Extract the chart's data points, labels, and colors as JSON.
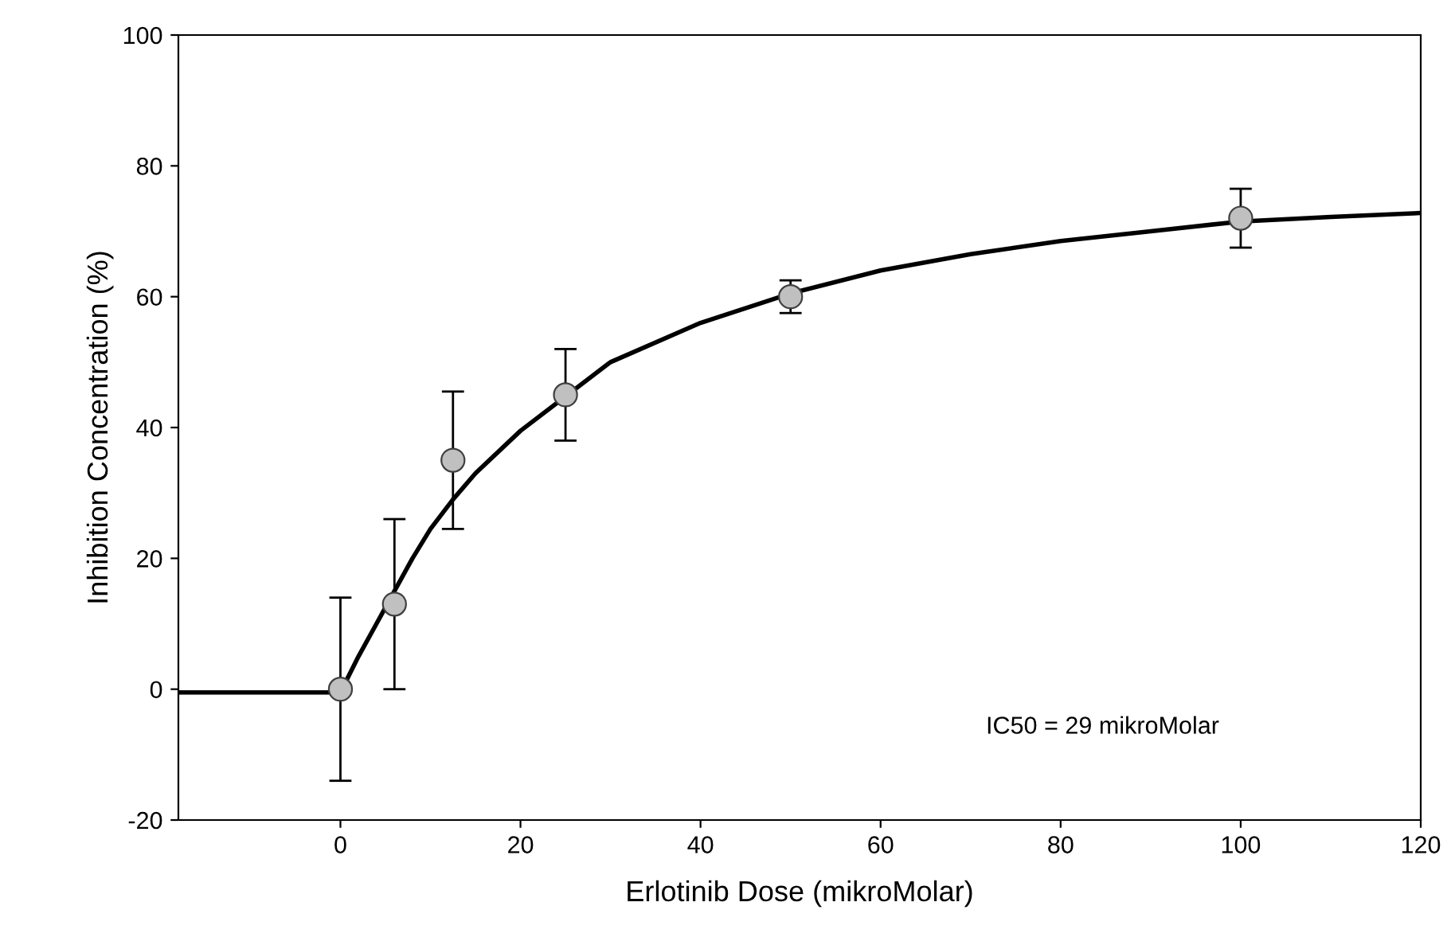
{
  "chart_data": {
    "type": "scatter",
    "xlabel": "Erlotinib Dose (mikroMolar)",
    "ylabel": "Inhibition Concentration (%)",
    "xlim": [
      -18,
      120
    ],
    "xticks": [
      0,
      20,
      40,
      60,
      80,
      100,
      120
    ],
    "ylim": [
      -20,
      100
    ],
    "yticks": [
      -20,
      0,
      20,
      40,
      60,
      80,
      100
    ],
    "grid": false,
    "annotations": [
      "IC50 = 29 mikroMolar"
    ],
    "series": [
      {
        "marker": "circle",
        "color": "#c0c0c0",
        "x": [
          0,
          6,
          12.5,
          25,
          50,
          100
        ],
        "values": [
          0,
          13,
          35,
          45,
          60,
          72
        ],
        "errors": [
          14,
          13,
          10.5,
          7,
          2.5,
          4.5
        ]
      },
      {
        "type": "line",
        "color": "#000000",
        "line_style": "solid",
        "x": [
          -18,
          0,
          2,
          4,
          6,
          8,
          10,
          12.5,
          15,
          20,
          30,
          40,
          50,
          60,
          70,
          80,
          90,
          100,
          110,
          120
        ],
        "values": [
          -0.5,
          -0.5,
          5,
          10,
          15,
          20,
          24.5,
          29,
          33,
          39.5,
          50,
          56,
          60.5,
          64,
          66.5,
          68.5,
          70,
          71.5,
          72.2,
          72.8
        ]
      }
    ]
  }
}
